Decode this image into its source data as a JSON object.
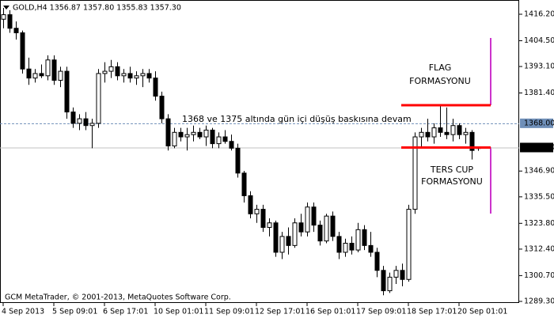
{
  "chart_data": {
    "type": "candlestick",
    "title": "GOLD,H4  1356.87 1357.80 1355.83 1357.30",
    "footer": "GCM MetaTrader, © 2001-2013, MetaQuotes Software Corp.",
    "categories": [
      "4 Sep 2013",
      null,
      null,
      null,
      null,
      null,
      null,
      null,
      "5 Sep 09:01",
      null,
      null,
      null,
      null,
      null,
      null,
      null,
      "6 Sep 17:01",
      null,
      null,
      null,
      null,
      null,
      null,
      null,
      "10 Sep 01:01",
      null,
      null,
      null,
      null,
      null,
      null,
      null,
      "11 Sep 09:01",
      null,
      null,
      null,
      null,
      null,
      null,
      null,
      "12 Sep 17:01",
      null,
      null,
      null,
      null,
      null,
      null,
      null,
      "16 Sep 01:01",
      null,
      null,
      null,
      null,
      null,
      null,
      null,
      "17 Sep 09:01",
      null,
      null,
      null,
      null,
      null,
      null,
      null,
      "18 Sep 17:01",
      null,
      null,
      null,
      null,
      null,
      null,
      null,
      "20 Sep 01:01",
      null,
      null,
      null
    ],
    "open": [
      1414,
      1416,
      1410,
      1408,
      1392,
      1388,
      1390,
      1389,
      1396,
      1387,
      1391,
      1373,
      1368,
      1370,
      1367,
      1368,
      1390,
      1391,
      1393,
      1389,
      1390,
      1388,
      1389,
      1390,
      1388,
      1380,
      1370,
      1358,
      1364,
      1362,
      1363,
      1364,
      1362,
      1365,
      1359,
      1362,
      1360,
      1357,
      1346,
      1336,
      1328,
      1330,
      1322,
      1324,
      1311,
      1318,
      1314,
      1324,
      1320,
      1331,
      1323,
      1316,
      1327,
      1318,
      1311,
      1315,
      1312,
      1321,
      1314,
      1311,
      1303,
      1294,
      1300,
      1303,
      1299,
      1330,
      1362,
      1364,
      1362,
      1366,
      1364,
      1363,
      1367,
      1363,
      1364,
      1356.87
    ],
    "high": [
      1419,
      1418,
      1413,
      1409,
      1397,
      1392,
      1394,
      1398,
      1398,
      1393,
      1393,
      1375,
      1372,
      1373,
      1370,
      1392,
      1395,
      1396,
      1395,
      1392,
      1393,
      1391,
      1392,
      1392,
      1391,
      1382,
      1372,
      1366,
      1366,
      1366,
      1367,
      1366,
      1367,
      1366,
      1364,
      1365,
      1363,
      1359,
      1347,
      1338,
      1332,
      1332,
      1326,
      1325,
      1320,
      1322,
      1326,
      1328,
      1333,
      1333,
      1325,
      1328,
      1329,
      1320,
      1317,
      1318,
      1324,
      1323,
      1320,
      1313,
      1305,
      1302,
      1305,
      1306,
      1332,
      1364,
      1366,
      1370,
      1368,
      1376,
      1375,
      1370,
      1368,
      1366,
      1365,
      1357.8
    ],
    "low": [
      1410,
      1408,
      1405,
      1390,
      1385,
      1386,
      1388,
      1387,
      1385,
      1384,
      1370,
      1366,
      1365,
      1365,
      1357,
      1366,
      1386,
      1388,
      1387,
      1386,
      1386,
      1385,
      1384,
      1386,
      1378,
      1368,
      1356,
      1357,
      1360,
      1356,
      1360,
      1361,
      1358,
      1357,
      1357,
      1359,
      1356,
      1344,
      1333,
      1326,
      1324,
      1320,
      1318,
      1309,
      1308,
      1310,
      1313,
      1318,
      1318,
      1320,
      1314,
      1315,
      1316,
      1308,
      1309,
      1310,
      1311,
      1312,
      1309,
      1300,
      1292,
      1293,
      1297,
      1296,
      1298,
      1328,
      1357,
      1360,
      1359,
      1362,
      1361,
      1360,
      1361,
      1359,
      1352,
      1355.83
    ],
    "close": [
      1416,
      1410,
      1408,
      1392,
      1388,
      1390,
      1389,
      1396,
      1387,
      1391,
      1373,
      1368,
      1370,
      1367,
      1368,
      1390,
      1391,
      1393,
      1389,
      1390,
      1388,
      1389,
      1390,
      1388,
      1380,
      1370,
      1358,
      1364,
      1362,
      1363,
      1364,
      1362,
      1365,
      1359,
      1362,
      1360,
      1357,
      1346,
      1336,
      1328,
      1330,
      1322,
      1324,
      1311,
      1318,
      1314,
      1324,
      1320,
      1331,
      1323,
      1316,
      1327,
      1318,
      1311,
      1315,
      1312,
      1321,
      1314,
      1311,
      1303,
      1294,
      1300,
      1303,
      1299,
      1330,
      1362,
      1364,
      1362,
      1366,
      1364,
      1363,
      1367,
      1363,
      1364,
      1356,
      1357.3
    ],
    "ylim": [
      1288.6,
      1422.49
    ],
    "yticks": [
      {
        "value": 1416.2,
        "label": "1416.20"
      },
      {
        "value": 1404.5,
        "label": "1404.50"
      },
      {
        "value": 1393.1,
        "label": "1393.10"
      },
      {
        "value": 1381.4,
        "label": "1381.40"
      },
      {
        "value": 1346.9,
        "label": "1346.90"
      },
      {
        "value": 1335.5,
        "label": "1335.50"
      },
      {
        "value": 1323.8,
        "label": "1323.80"
      },
      {
        "value": 1312.4,
        "label": "1312.40"
      },
      {
        "value": 1300.7,
        "label": "1300.70"
      },
      {
        "value": 1289.3,
        "label": "1289.30"
      }
    ],
    "price_tags": [
      {
        "value": 1368,
        "label": "1368.00",
        "color": "#6f8fb8"
      },
      {
        "value": 1357.3,
        "label": "1357.30",
        "color": "#000000"
      }
    ],
    "levels": [
      {
        "value": 1376,
        "color": "#ff0000"
      },
      {
        "value": 1357.3,
        "color": "#ff0000"
      }
    ],
    "annotations": {
      "main": "1368 ve 1375 altında gün içi düşüş baskısına devam",
      "flag": [
        "FLAG",
        "FORMASYONU"
      ],
      "cup": [
        "TERS CUP",
        "FORMASYONU"
      ]
    },
    "bull_color": "#ffffff",
    "bear_color": "#000000"
  }
}
